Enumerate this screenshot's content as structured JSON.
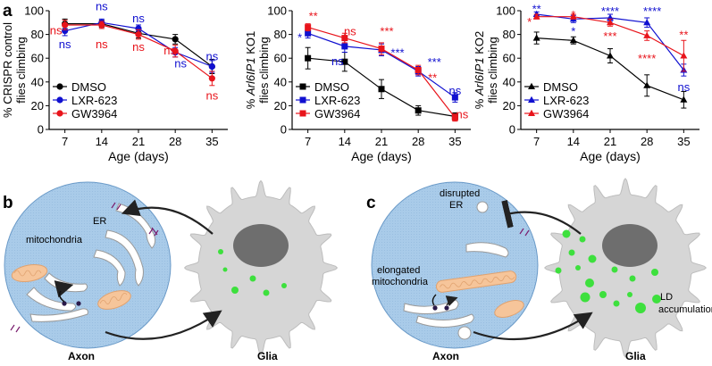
{
  "figure": {
    "panel_labels": {
      "a": "a",
      "b": "b",
      "c": "c"
    }
  },
  "chart_data": [
    {
      "type": "line",
      "ylabel": "% CRISPR control\nflies climbing",
      "ylabel_lines": [
        "% CRISPR control",
        "flies climbing"
      ],
      "xlabel": "Age (days)",
      "x": [
        7,
        14,
        21,
        28,
        35
      ],
      "ylim": [
        0,
        100
      ],
      "yticks": [
        0,
        20,
        40,
        60,
        80,
        100
      ],
      "series": [
        {
          "name": "DMSO",
          "marker": "circle",
          "color": "#000000",
          "values": [
            89,
            89,
            81,
            76,
            53
          ],
          "err": [
            4,
            3,
            4,
            4,
            6
          ]
        },
        {
          "name": "LXR-623",
          "marker": "circle",
          "color": "#1010d0",
          "values": [
            83,
            90,
            85,
            65,
            53
          ],
          "err": [
            4,
            3,
            3,
            4,
            5
          ]
        },
        {
          "name": "GW3964",
          "marker": "circle",
          "color": "#e8141b",
          "values": [
            88,
            88,
            80,
            66,
            43
          ],
          "err": [
            4,
            3,
            4,
            5,
            6
          ]
        }
      ],
      "annotations": [
        {
          "x": 7,
          "y": 72,
          "text": "ns",
          "color": "#1010d0"
        },
        {
          "x": 7,
          "y": 84,
          "text": "ns",
          "color": "#e8141b",
          "dx": -10
        },
        {
          "x": 14,
          "y": 104,
          "text": "ns",
          "color": "#1010d0"
        },
        {
          "x": 14,
          "y": 72,
          "text": "ns",
          "color": "#e8141b"
        },
        {
          "x": 21,
          "y": 94,
          "text": "ns",
          "color": "#1010d0"
        },
        {
          "x": 21,
          "y": 70,
          "text": "ns",
          "color": "#e8141b"
        },
        {
          "x": 28,
          "y": 56,
          "text": "ns",
          "color": "#1010d0",
          "dx": 6
        },
        {
          "x": 28,
          "y": 67,
          "text": "ns",
          "color": "#e8141b",
          "dx": -6
        },
        {
          "x": 35,
          "y": 62,
          "text": "ns",
          "color": "#1010d0"
        },
        {
          "x": 35,
          "y": 29,
          "text": "ns",
          "color": "#e8141b"
        }
      ],
      "legend": "bottom-left"
    },
    {
      "type": "line",
      "ylabel_lines": [
        "% Arl6IP1 KO1",
        "flies climbing"
      ],
      "ylabel_italic": "Arl6IP1",
      "xlabel": "Age (days)",
      "x": [
        7,
        14,
        21,
        28,
        35
      ],
      "ylim": [
        0,
        100
      ],
      "yticks": [
        0,
        20,
        40,
        60,
        80,
        100
      ],
      "series": [
        {
          "name": "DMSO",
          "marker": "square",
          "color": "#000000",
          "values": [
            60,
            57,
            34,
            16,
            11
          ],
          "err": [
            9,
            8,
            8,
            4,
            3
          ]
        },
        {
          "name": "LXR-623",
          "marker": "square",
          "color": "#1010d0",
          "values": [
            81,
            70,
            67,
            49,
            27
          ],
          "err": [
            4,
            5,
            5,
            4,
            4
          ]
        },
        {
          "name": "GW3964",
          "marker": "square",
          "color": "#e8141b",
          "values": [
            86,
            77,
            68,
            50,
            10
          ],
          "err": [
            3,
            4,
            5,
            4,
            3
          ]
        }
      ],
      "annotations": [
        {
          "x": 7,
          "y": 96,
          "text": "**",
          "color": "#e8141b",
          "dx": 6
        },
        {
          "x": 7,
          "y": 78,
          "text": "*",
          "color": "#1010d0",
          "dx": -9
        },
        {
          "x": 14,
          "y": 83,
          "text": "ns",
          "color": "#e8141b",
          "dx": 6
        },
        {
          "x": 14,
          "y": 58,
          "text": "ns",
          "color": "#1010d0",
          "dx": -8
        },
        {
          "x": 21,
          "y": 83,
          "text": "***",
          "color": "#e8141b",
          "dx": 6
        },
        {
          "x": 21,
          "y": 65,
          "text": "***",
          "color": "#1010d0",
          "dx": 18
        },
        {
          "x": 28,
          "y": 57,
          "text": "***",
          "color": "#1010d0",
          "dx": 18
        },
        {
          "x": 28,
          "y": 44,
          "text": "**",
          "color": "#e8141b",
          "dx": 16
        },
        {
          "x": 35,
          "y": 33,
          "text": "ns",
          "color": "#1010d0"
        },
        {
          "x": 35,
          "y": 13,
          "text": "ns",
          "color": "#e8141b",
          "dx": 8
        }
      ],
      "legend": "bottom-left"
    },
    {
      "type": "line",
      "ylabel_lines": [
        "% Arl6IP1 KO2",
        "flies climbing"
      ],
      "ylabel_italic": "Arl6IP1",
      "xlabel": "Age (days)",
      "x": [
        7,
        14,
        21,
        28,
        35
      ],
      "ylim": [
        0,
        100
      ],
      "yticks": [
        0,
        20,
        40,
        60,
        80,
        100
      ],
      "series": [
        {
          "name": "DMSO",
          "marker": "triangle",
          "color": "#000000",
          "values": [
            77,
            75,
            62,
            37,
            25
          ],
          "err": [
            5,
            3,
            6,
            9,
            7
          ]
        },
        {
          "name": "LXR-623",
          "marker": "triangle",
          "color": "#1010d0",
          "values": [
            97,
            93,
            94,
            90,
            50
          ],
          "err": [
            2,
            3,
            3,
            4,
            5
          ]
        },
        {
          "name": "GW3964",
          "marker": "triangle",
          "color": "#e8141b",
          "values": [
            95,
            95,
            90,
            79,
            62
          ],
          "err": [
            2,
            2,
            3,
            4,
            13
          ]
        }
      ],
      "annotations": [
        {
          "x": 7,
          "y": 102,
          "text": "**",
          "color": "#1010d0"
        },
        {
          "x": 7,
          "y": 91,
          "text": "*",
          "color": "#e8141b",
          "dx": -8
        },
        {
          "x": 14,
          "y": 97,
          "text": "*",
          "color": "#e8141b"
        },
        {
          "x": 14,
          "y": 83,
          "text": "*",
          "color": "#1010d0"
        },
        {
          "x": 21,
          "y": 100,
          "text": "****",
          "color": "#1010d0"
        },
        {
          "x": 21,
          "y": 79,
          "text": "***",
          "color": "#e8141b"
        },
        {
          "x": 28,
          "y": 100,
          "text": "****",
          "color": "#1010d0",
          "dx": 6
        },
        {
          "x": 28,
          "y": 60,
          "text": "****",
          "color": "#e8141b"
        },
        {
          "x": 35,
          "y": 80,
          "text": "**",
          "color": "#e8141b"
        },
        {
          "x": 35,
          "y": 36,
          "text": "ns",
          "color": "#1010d0"
        }
      ],
      "legend": "bottom-left"
    }
  ],
  "diagram_b": {
    "labels": {
      "er": "ER",
      "mito": "mitochondria",
      "axon": "Axon",
      "glia": "Glia"
    }
  },
  "diagram_c": {
    "labels": {
      "er_line1": "disrupted",
      "er_line2": "ER",
      "mito_line1": "elongated",
      "mito_line2": "mitochondria",
      "ld_line1": "LD",
      "ld_line2": "accumulation",
      "axon": "Axon",
      "glia": "Glia"
    }
  },
  "colors": {
    "axon_fill": "#a9cbe9",
    "glia_fill": "#d6d6d6",
    "nucleus": "#6e6e6e",
    "lipid_droplet": "#3de03d",
    "mitochondria": "#f6c59a",
    "membrane": "#7a1e6e"
  }
}
